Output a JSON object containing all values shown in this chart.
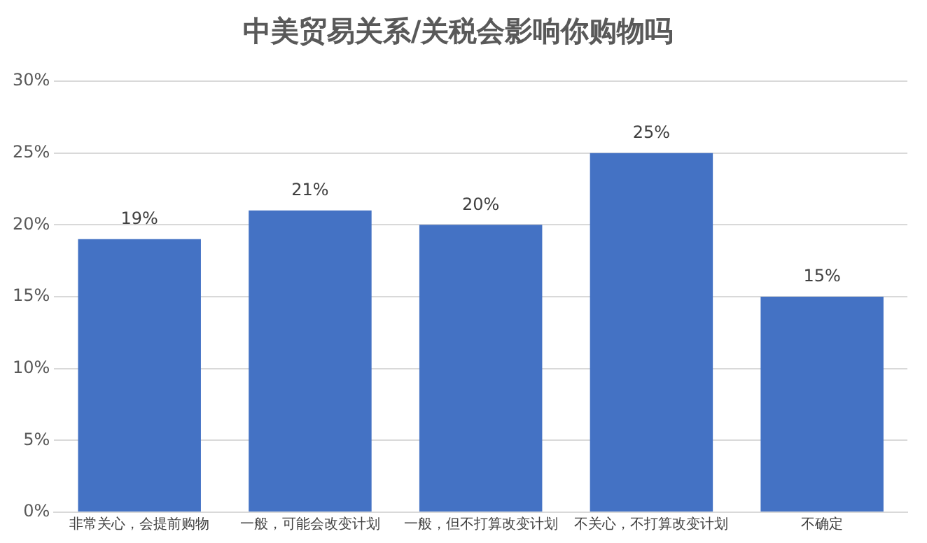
{
  "chart_data": {
    "type": "bar",
    "title": "中美贸易关系/关税会影响你购物吗",
    "categories": [
      "非常关心，会提前购物",
      "一般，可能会改变计划",
      "一般，但不打算改变计划",
      "不关心，不打算改变计划",
      "不确定"
    ],
    "values": [
      19,
      21,
      20,
      25,
      15
    ],
    "value_labels": [
      "19%",
      "21%",
      "20%",
      "25%",
      "15%"
    ],
    "color": "#4472c4",
    "ylim": [
      0,
      30
    ],
    "yticks": [
      {
        "value": 0,
        "label": "0%"
      },
      {
        "value": 5,
        "label": "5%"
      },
      {
        "value": 10,
        "label": "10%"
      },
      {
        "value": 15,
        "label": "15%"
      },
      {
        "value": 20,
        "label": "20%"
      },
      {
        "value": 25,
        "label": "25%"
      },
      {
        "value": 30,
        "label": "30%"
      }
    ],
    "grid": "y",
    "legend": false
  }
}
